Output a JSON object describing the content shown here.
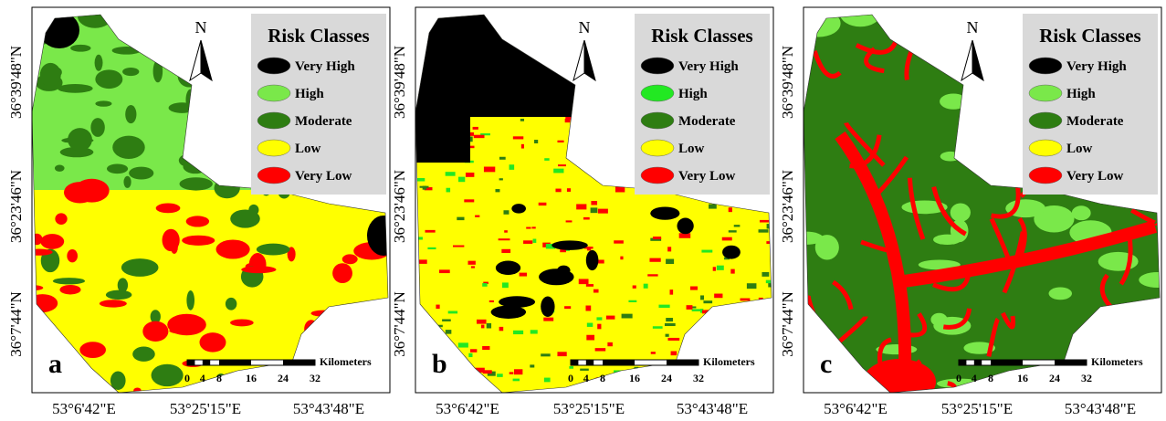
{
  "panels": [
    {
      "label": "a",
      "north": "N",
      "legend_title": "Risk Classes",
      "classes": [
        {
          "name": "Very High",
          "color": "#000000"
        },
        {
          "name": "High",
          "color": "#7ae84a"
        },
        {
          "name": "Moderate",
          "color": "#2e7d12"
        },
        {
          "name": "Low",
          "color": "#ffff00"
        },
        {
          "name": "Very Low",
          "color": "#ff0000"
        }
      ],
      "lat_labels": [
        "36°39'48\"N",
        "36°23'46\"N",
        "36°7'44\"N"
      ],
      "lon_labels": [
        "53°6'42\"E",
        "53°25'15\"E",
        "53°43'48\"E"
      ],
      "scale_unit": "Kilometers",
      "scale_ticks": [
        "0",
        "4",
        "8",
        "16",
        "24",
        "32"
      ]
    },
    {
      "label": "b",
      "north": "N",
      "legend_title": "Risk Classes",
      "classes": [
        {
          "name": "Very High",
          "color": "#000000"
        },
        {
          "name": "High",
          "color": "#22e822"
        },
        {
          "name": "Moderate",
          "color": "#2e7d12"
        },
        {
          "name": "Low",
          "color": "#ffff00"
        },
        {
          "name": "Very Low",
          "color": "#ff0000"
        }
      ],
      "lat_labels": [
        "36°39'48\"N",
        "36°23'46\"N",
        "36°7'44\"N"
      ],
      "lon_labels": [
        "53°6'42\"E",
        "53°25'15\"E",
        "53°43'48\"E"
      ],
      "scale_unit": "Kilometers",
      "scale_ticks": [
        "0",
        "4",
        "8",
        "16",
        "24",
        "32"
      ]
    },
    {
      "label": "c",
      "north": "N",
      "legend_title": "Risk Classes",
      "classes": [
        {
          "name": "Very High",
          "color": "#000000"
        },
        {
          "name": "High",
          "color": "#7ae84a"
        },
        {
          "name": "Moderate",
          "color": "#2e7d12"
        },
        {
          "name": "Low",
          "color": "#ffff00"
        },
        {
          "name": "Very Low",
          "color": "#ff0000"
        }
      ],
      "lat_labels": [
        "36°39'48\"N",
        "36°23'46\"N",
        "36°7'44\"N"
      ],
      "lon_labels": [
        "53°6'42\"E",
        "53°25'15\"E",
        "53°43'48\"E"
      ],
      "scale_unit": "Kilometers",
      "scale_ticks": [
        "0",
        "4",
        "8",
        "16",
        "24",
        "32"
      ]
    }
  ]
}
